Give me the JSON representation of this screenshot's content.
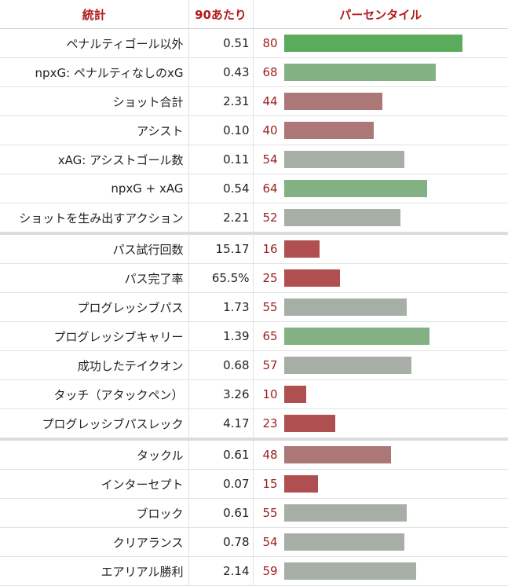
{
  "header": {
    "stat": "統計",
    "per90": "90あたり",
    "percentile": "パーセンタイル"
  },
  "colors": {
    "high": "#5aab5c",
    "mid_green": "#83b183",
    "neutral": "#a6aea6",
    "mid_red": "#ac7777",
    "low": "#b04f4f"
  },
  "groups": [
    {
      "rows": [
        {
          "stat": "ペナルティゴール以外",
          "per90": "0.51",
          "percentile": 80
        },
        {
          "stat": "npxG: ペナルティなしのxG",
          "per90": "0.43",
          "percentile": 68
        },
        {
          "stat": "ショット合計",
          "per90": "2.31",
          "percentile": 44
        },
        {
          "stat": "アシスト",
          "per90": "0.10",
          "percentile": 40
        },
        {
          "stat": "xAG: アシストゴール数",
          "per90": "0.11",
          "percentile": 54
        },
        {
          "stat": "npxG + xAG",
          "per90": "0.54",
          "percentile": 64
        },
        {
          "stat": "ショットを生み出すアクション",
          "per90": "2.21",
          "percentile": 52
        }
      ]
    },
    {
      "rows": [
        {
          "stat": "パス試行回数",
          "per90": "15.17",
          "percentile": 16
        },
        {
          "stat": "パス完了率",
          "per90": "65.5%",
          "percentile": 25
        },
        {
          "stat": "プログレッシブパス",
          "per90": "1.73",
          "percentile": 55
        },
        {
          "stat": "プログレッシブキャリー",
          "per90": "1.39",
          "percentile": 65
        },
        {
          "stat": "成功したテイクオン",
          "per90": "0.68",
          "percentile": 57
        },
        {
          "stat": "タッチ（アタックペン）",
          "per90": "3.26",
          "percentile": 10
        },
        {
          "stat": "プログレッシブパスレック",
          "per90": "4.17",
          "percentile": 23
        }
      ]
    },
    {
      "rows": [
        {
          "stat": "タックル",
          "per90": "0.61",
          "percentile": 48
        },
        {
          "stat": "インターセプト",
          "per90": "0.07",
          "percentile": 15
        },
        {
          "stat": "ブロック",
          "per90": "0.61",
          "percentile": 55
        },
        {
          "stat": "クリアランス",
          "per90": "0.78",
          "percentile": 54
        },
        {
          "stat": "エアリアル勝利",
          "per90": "2.14",
          "percentile": 59
        }
      ]
    }
  ]
}
